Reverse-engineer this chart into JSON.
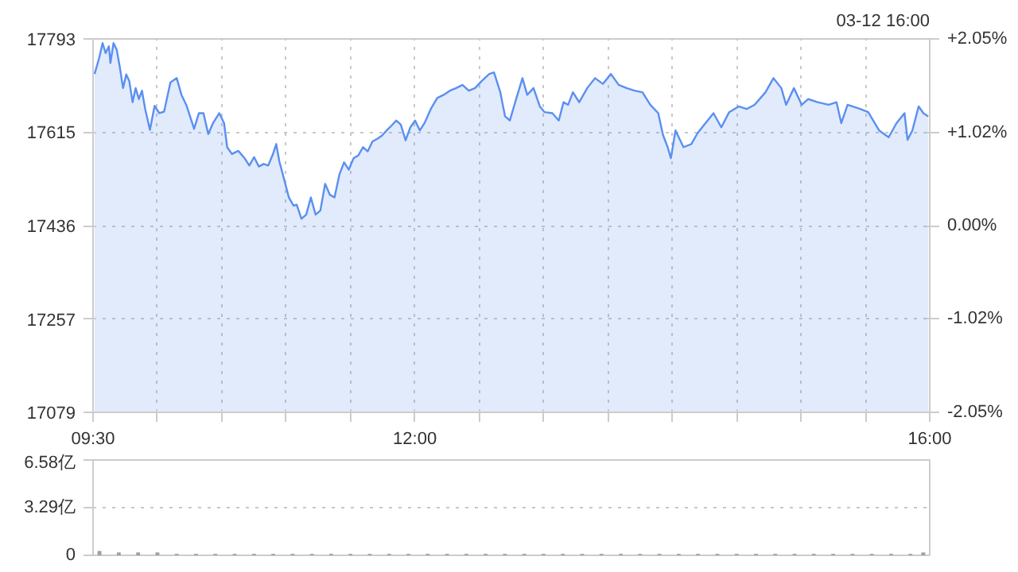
{
  "chart_data": [
    {
      "type": "area",
      "annotations": [
        "03-12 16:00"
      ],
      "grid": true,
      "line_style": "solid",
      "marker": "none",
      "xlim": [
        9.5,
        16
      ],
      "xticks": [
        {
          "value": 9.5,
          "label": "09:30"
        },
        {
          "value": 10,
          "label": null
        },
        {
          "value": 10.5,
          "label": null
        },
        {
          "value": 11,
          "label": null
        },
        {
          "value": 11.5,
          "label": null
        },
        {
          "value": 12,
          "label": "12:00"
        },
        {
          "value": 12.5,
          "label": null
        },
        {
          "value": 13,
          "label": null
        },
        {
          "value": 13.5,
          "label": null
        },
        {
          "value": 14,
          "label": null
        },
        {
          "value": 14.5,
          "label": null
        },
        {
          "value": 15,
          "label": null
        },
        {
          "value": 15.5,
          "label": null
        },
        {
          "value": 16,
          "label": "16:00"
        }
      ],
      "ylim": [
        17079,
        17793
      ],
      "yticks": [
        17079,
        17257,
        17436,
        17615,
        17793
      ],
      "y2lim": [
        -2.05,
        2.05
      ],
      "y2ticks": [
        {
          "value": -2.05,
          "label": "-2.05%"
        },
        {
          "value": -1.02,
          "label": "-1.02%"
        },
        {
          "value": 0,
          "label": "0.00%"
        },
        {
          "value": 1.02,
          "label": "+1.02%"
        },
        {
          "value": 2.05,
          "label": "+2.05%"
        }
      ],
      "series": [
        {
          "color": "#5b8ff0",
          "x": [
            9.512,
            9.549,
            9.574,
            9.598,
            9.623,
            9.635,
            9.659,
            9.684,
            9.708,
            9.733,
            9.758,
            9.782,
            9.807,
            9.831,
            9.856,
            9.88,
            9.905,
            9.942,
            9.978,
            10.015,
            10.052,
            10.101,
            10.15,
            10.187,
            10.224,
            10.26,
            10.285,
            10.322,
            10.358,
            10.395,
            10.432,
            10.481,
            10.518,
            10.542,
            10.579,
            10.628,
            10.677,
            10.714,
            10.751,
            10.788,
            10.825,
            10.861,
            10.898,
            10.923,
            10.947,
            10.984,
            11.021,
            11.058,
            11.082,
            11.119,
            11.156,
            11.192,
            11.229,
            11.266,
            11.303,
            11.34,
            11.376,
            11.413,
            11.45,
            11.487,
            11.524,
            11.56,
            11.597,
            11.634,
            11.671,
            11.708,
            11.744,
            11.781,
            11.818,
            11.855,
            11.891,
            11.928,
            11.965,
            12.002,
            12.039,
            12.075,
            12.124,
            12.174,
            12.223,
            12.272,
            12.321,
            12.37,
            12.419,
            12.468,
            12.517,
            12.578,
            12.615,
            12.664,
            12.701,
            12.738,
            12.787,
            12.836,
            12.873,
            12.922,
            12.971,
            13.008,
            13.069,
            13.118,
            13.155,
            13.191,
            13.228,
            13.277,
            13.339,
            13.4,
            13.461,
            13.523,
            13.584,
            13.645,
            13.707,
            13.768,
            13.829,
            13.891,
            13.927,
            13.964,
            13.989,
            14.025,
            14.087,
            14.148,
            14.197,
            14.258,
            14.32,
            14.381,
            14.442,
            14.516,
            14.577,
            14.639,
            14.724,
            14.786,
            14.847,
            14.884,
            14.945,
            15.006,
            15.056,
            15.129,
            15.215,
            15.276,
            15.313,
            15.362,
            15.46,
            15.522,
            15.607,
            15.681,
            15.742,
            15.804,
            15.828,
            15.865,
            15.914,
            15.951,
            15.988
          ],
          "values": [
            17726,
            17758,
            17785,
            17766,
            17779,
            17747,
            17785,
            17772,
            17739,
            17699,
            17725,
            17712,
            17672,
            17699,
            17678,
            17694,
            17659,
            17619,
            17665,
            17651,
            17654,
            17710,
            17718,
            17686,
            17667,
            17640,
            17621,
            17651,
            17651,
            17611,
            17632,
            17651,
            17632,
            17586,
            17573,
            17579,
            17565,
            17551,
            17567,
            17549,
            17554,
            17551,
            17573,
            17592,
            17559,
            17525,
            17490,
            17474,
            17476,
            17449,
            17457,
            17490,
            17457,
            17465,
            17516,
            17495,
            17490,
            17533,
            17557,
            17543,
            17565,
            17570,
            17586,
            17578,
            17597,
            17602,
            17608,
            17618,
            17627,
            17637,
            17629,
            17599,
            17624,
            17637,
            17618,
            17632,
            17659,
            17680,
            17686,
            17694,
            17699,
            17705,
            17694,
            17699,
            17712,
            17726,
            17729,
            17691,
            17645,
            17637,
            17678,
            17718,
            17686,
            17699,
            17664,
            17653,
            17651,
            17637,
            17672,
            17667,
            17691,
            17672,
            17699,
            17718,
            17707,
            17726,
            17705,
            17699,
            17694,
            17691,
            17667,
            17651,
            17610,
            17586,
            17565,
            17618,
            17586,
            17592,
            17613,
            17632,
            17651,
            17624,
            17653,
            17664,
            17659,
            17667,
            17691,
            17718,
            17699,
            17667,
            17699,
            17667,
            17678,
            17672,
            17667,
            17672,
            17632,
            17667,
            17659,
            17653,
            17618,
            17605,
            17632,
            17651,
            17600,
            17618,
            17664,
            17651,
            17645
          ]
        }
      ]
    },
    {
      "type": "bar",
      "grid": "y",
      "tick_labels": "y",
      "xlim": [
        9.5,
        16
      ],
      "ylim": [
        0,
        6.58
      ],
      "yticks": [
        0,
        {
          "value": 3.29,
          "label": "3.29亿"
        },
        {
          "value": 6.58,
          "label": "6.58亿"
        }
      ],
      "x": [
        9.55,
        9.7,
        9.85,
        10,
        10.15,
        10.3,
        10.45,
        10.6,
        10.75,
        10.9,
        11.05,
        11.2,
        11.35,
        11.5,
        11.65,
        11.8,
        11.95,
        12.1,
        12.25,
        12.4,
        12.55,
        12.7,
        12.85,
        13,
        13.15,
        13.3,
        13.45,
        13.6,
        13.75,
        13.9,
        14.05,
        14.2,
        14.35,
        14.5,
        14.65,
        14.8,
        14.95,
        15.1,
        15.25,
        15.4,
        15.55,
        15.7,
        15.85,
        15.95
      ],
      "values": [
        0.3,
        0.2,
        0.2,
        0.2,
        0.1,
        0.1,
        0.1,
        0.1,
        0.1,
        0.1,
        0.1,
        0.1,
        0.1,
        0.1,
        0.1,
        0.1,
        0.1,
        0.1,
        0.1,
        0.1,
        0.1,
        0.1,
        0.1,
        0.1,
        0.1,
        0.1,
        0.1,
        0.1,
        0.1,
        0.1,
        0.1,
        0.1,
        0.1,
        0.1,
        0.1,
        0.1,
        0.1,
        0.1,
        0.1,
        0.1,
        0.1,
        0.1,
        0.1,
        0.2
      ],
      "color": "#a0a0a0"
    }
  ]
}
